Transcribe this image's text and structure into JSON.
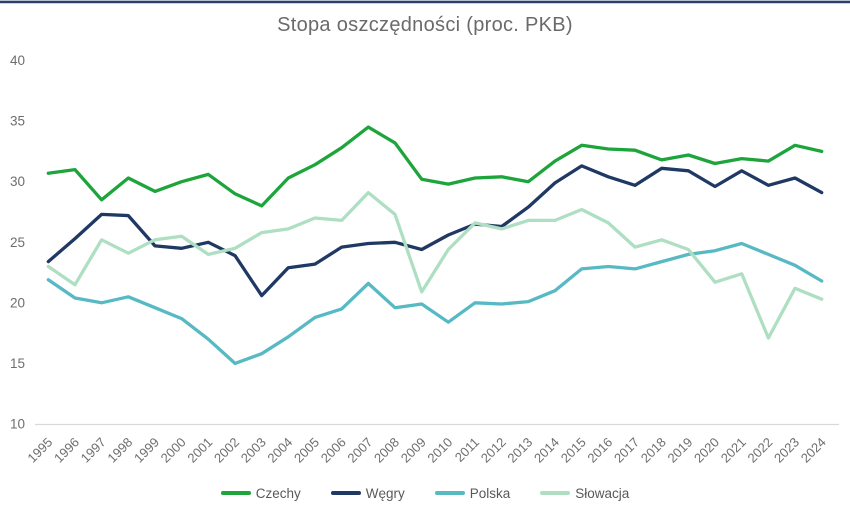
{
  "page": {
    "top_border_color": "#2b4068",
    "background_color": "#ffffff",
    "text_color": "#6a6a6a",
    "axis_line_color": "#d9d9d9"
  },
  "chart_data": {
    "type": "line",
    "title": "Stopa oszczędności (proc. PKB)",
    "xlabel": "",
    "ylabel": "",
    "ylim": [
      10,
      40
    ],
    "yticks": [
      10,
      15,
      20,
      25,
      30,
      35,
      40
    ],
    "grid": false,
    "legend_position": "bottom",
    "x": [
      "1995",
      "1996",
      "1997",
      "1998",
      "1999",
      "2000",
      "2001",
      "2002",
      "2003",
      "2004",
      "2005",
      "2006",
      "2007",
      "2008",
      "2009",
      "2010",
      "2011",
      "2012",
      "2013",
      "2014",
      "2015",
      "2016",
      "2017",
      "2018",
      "2019",
      "2020",
      "2021",
      "2022",
      "2023",
      "2024"
    ],
    "series": [
      {
        "name": "Czechy",
        "color": "#1da53c",
        "values": [
          30.7,
          31.0,
          28.5,
          30.3,
          29.2,
          30.0,
          30.6,
          29.0,
          28.0,
          30.3,
          31.4,
          32.8,
          34.5,
          33.2,
          30.2,
          29.8,
          30.3,
          30.4,
          30.0,
          31.7,
          33.0,
          32.7,
          32.6,
          31.8,
          32.2,
          31.5,
          31.9,
          31.7,
          33.0,
          32.5
        ]
      },
      {
        "name": "Węgry",
        "color": "#1f3864",
        "values": [
          23.4,
          25.3,
          27.3,
          27.2,
          24.7,
          24.5,
          25.0,
          23.9,
          20.6,
          22.9,
          23.2,
          24.6,
          24.9,
          25.0,
          24.4,
          25.6,
          26.5,
          26.3,
          27.9,
          29.9,
          31.3,
          30.4,
          29.7,
          31.1,
          30.9,
          29.6,
          30.9,
          29.7,
          30.3,
          29.1
        ]
      },
      {
        "name": "Polska",
        "color": "#57b9c4",
        "values": [
          21.9,
          20.4,
          20.0,
          20.5,
          19.6,
          18.7,
          17.0,
          15.0,
          15.8,
          17.2,
          18.8,
          19.5,
          21.6,
          19.6,
          19.9,
          18.4,
          20.0,
          19.9,
          20.1,
          21.0,
          22.8,
          23.0,
          22.8,
          23.4,
          24.0,
          24.3,
          24.9,
          24.0,
          23.1,
          21.8
        ]
      },
      {
        "name": "Słowacja",
        "color": "#aedfc2",
        "values": [
          23.0,
          21.5,
          25.2,
          24.1,
          25.2,
          25.5,
          24.0,
          24.5,
          25.8,
          26.1,
          27.0,
          26.8,
          29.1,
          27.3,
          20.9,
          24.4,
          26.6,
          26.1,
          26.8,
          26.8,
          27.7,
          26.6,
          24.6,
          25.2,
          24.4,
          21.7,
          22.4,
          17.1,
          21.2,
          20.3
        ]
      }
    ]
  }
}
